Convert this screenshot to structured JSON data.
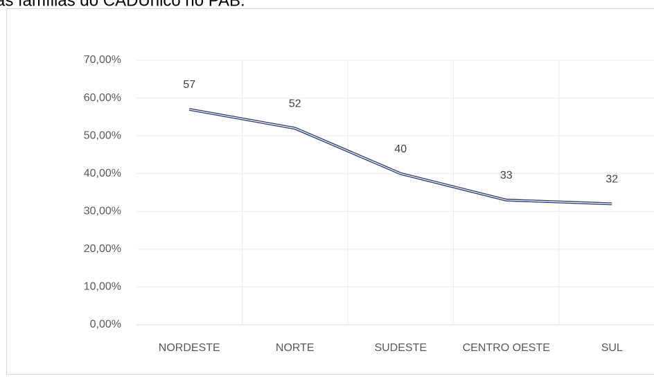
{
  "chart_data": {
    "type": "line",
    "title": "as famílias do CADÚnico no PAB.",
    "categories": [
      "NORDESTE",
      "NORTE",
      "SUDESTE",
      "CENTRO OESTE",
      "SUL"
    ],
    "values": [
      57,
      52,
      40,
      33,
      32
    ],
    "color": "#2f4578",
    "ylim": [
      0,
      70
    ],
    "yticks": [
      {
        "value": 0,
        "label": "0,00%"
      },
      {
        "value": 10,
        "label": "10,00%"
      },
      {
        "value": 20,
        "label": "20,00%"
      },
      {
        "value": 30,
        "label": "30,00%"
      },
      {
        "value": 40,
        "label": "40,00%"
      },
      {
        "value": 50,
        "label": "50,00%"
      },
      {
        "value": 60,
        "label": "60,00%"
      },
      {
        "value": 70,
        "label": "70,00%"
      }
    ],
    "grid": true
  }
}
